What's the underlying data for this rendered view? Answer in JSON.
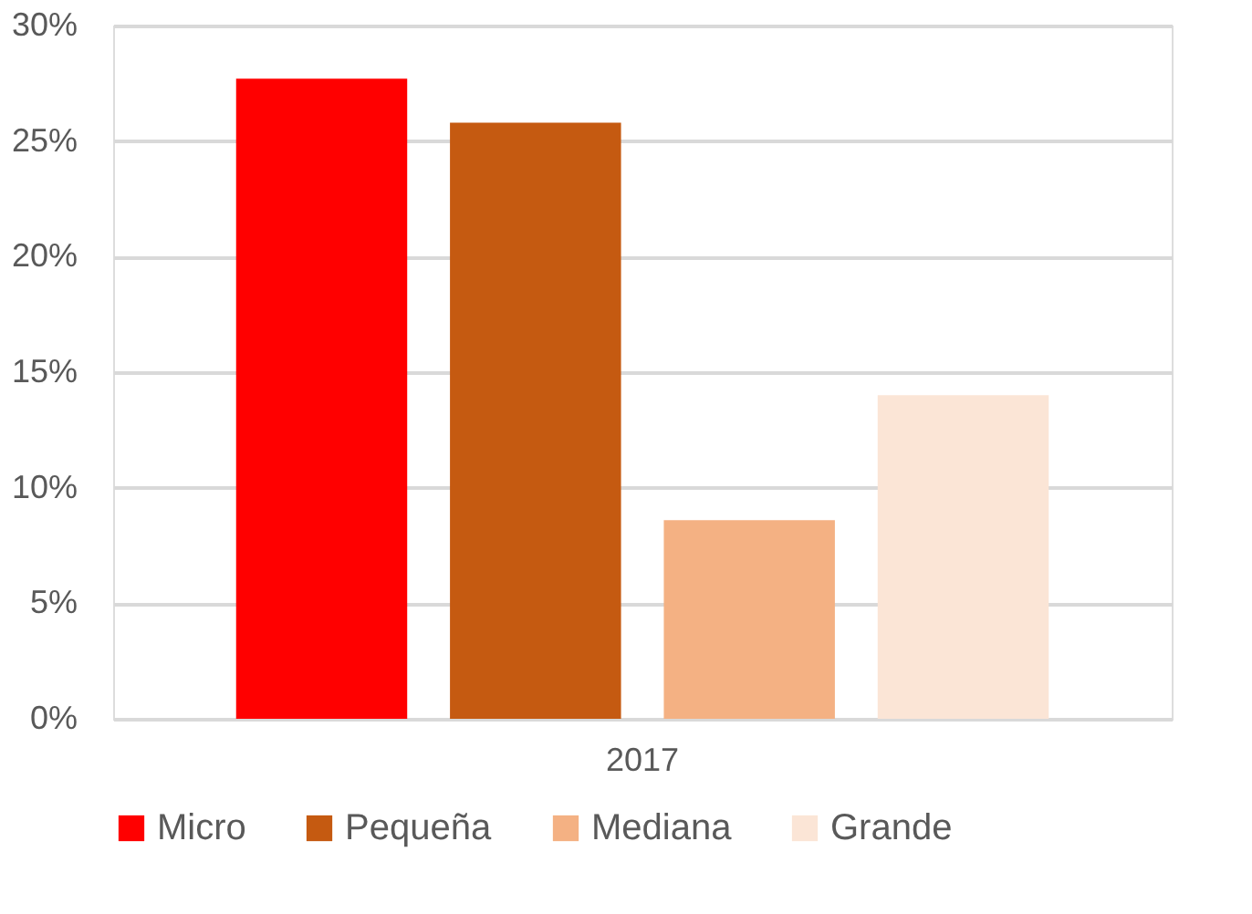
{
  "chart_data": {
    "type": "bar",
    "categories": [
      "2017"
    ],
    "series": [
      {
        "name": "Micro",
        "color": "#ff0000",
        "values": [
          27.7
        ]
      },
      {
        "name": "Pequeña",
        "color": "#c55a11",
        "values": [
          25.8
        ]
      },
      {
        "name": "Mediana",
        "color": "#f4b183",
        "values": [
          8.6
        ]
      },
      {
        "name": "Grande",
        "color": "#fbe5d6",
        "values": [
          14.0
        ]
      }
    ],
    "ylim": [
      0,
      30
    ],
    "yticks": [
      {
        "value": 0,
        "label": "0%"
      },
      {
        "value": 5,
        "label": "5%"
      },
      {
        "value": 10,
        "label": "10%"
      },
      {
        "value": 15,
        "label": "15%"
      },
      {
        "value": 20,
        "label": "20%"
      },
      {
        "value": 25,
        "label": "25%"
      },
      {
        "value": 30,
        "label": "30%"
      }
    ],
    "grid": "y",
    "legend": "bottom"
  }
}
